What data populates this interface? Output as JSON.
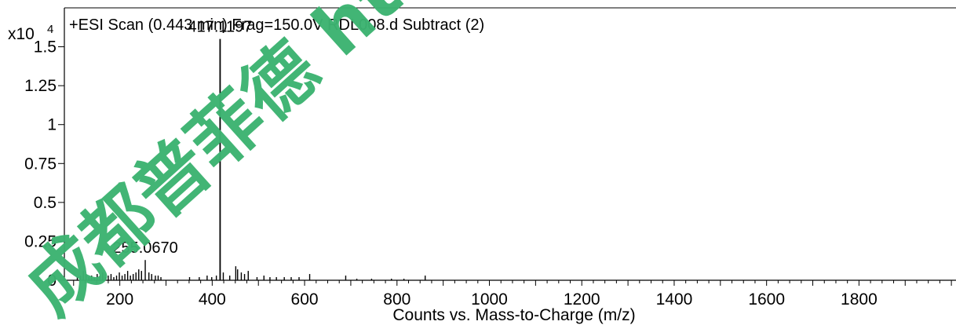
{
  "chart_data": {
    "type": "bar",
    "title": "+ESI Scan (0.443 min) Frag=150.0V RDL008.d  Subtract (2)",
    "xlabel": "Counts vs. Mass-to-Charge (m/z)",
    "ylabel": "",
    "y_multiplier_label": "x10",
    "y_multiplier_exponent": "4",
    "xlim": [
      80,
      2010
    ],
    "ylim": [
      0,
      1.75
    ],
    "x_ticks": [
      200,
      400,
      600,
      800,
      1000,
      1200,
      1400,
      1600,
      1800
    ],
    "y_ticks": [
      0,
      0.25,
      0.5,
      0.75,
      1,
      1.25,
      1.5
    ],
    "y_tick_labels": [
      "0",
      "0.25",
      "0.5",
      "0.75",
      "1",
      "1.25",
      "1.5"
    ],
    "grid": false,
    "annotations": [
      {
        "text": "417.1197",
        "x": 417.1197,
        "y": 1.55
      },
      {
        "text": "255.0670",
        "x": 255.067,
        "y": 0.13
      }
    ],
    "peaks": [
      {
        "x": 108,
        "y": 0.02
      },
      {
        "x": 115,
        "y": 0.03
      },
      {
        "x": 121,
        "y": 0.06
      },
      {
        "x": 127,
        "y": 0.04
      },
      {
        "x": 133,
        "y": 0.02
      },
      {
        "x": 139,
        "y": 0.03
      },
      {
        "x": 145,
        "y": 0.02
      },
      {
        "x": 151,
        "y": 0.04
      },
      {
        "x": 157,
        "y": 0.03
      },
      {
        "x": 163,
        "y": 0.05
      },
      {
        "x": 169,
        "y": 0.02
      },
      {
        "x": 175,
        "y": 0.03
      },
      {
        "x": 181,
        "y": 0.04
      },
      {
        "x": 187,
        "y": 0.02
      },
      {
        "x": 193,
        "y": 0.03
      },
      {
        "x": 199,
        "y": 0.05
      },
      {
        "x": 205,
        "y": 0.03
      },
      {
        "x": 211,
        "y": 0.04
      },
      {
        "x": 217,
        "y": 0.06
      },
      {
        "x": 223,
        "y": 0.03
      },
      {
        "x": 229,
        "y": 0.04
      },
      {
        "x": 235,
        "y": 0.05
      },
      {
        "x": 241,
        "y": 0.07
      },
      {
        "x": 247,
        "y": 0.06
      },
      {
        "x": 255.067,
        "y": 0.13
      },
      {
        "x": 263,
        "y": 0.05
      },
      {
        "x": 269,
        "y": 0.04
      },
      {
        "x": 277,
        "y": 0.03
      },
      {
        "x": 283,
        "y": 0.03
      },
      {
        "x": 289,
        "y": 0.02
      },
      {
        "x": 351,
        "y": 0.02
      },
      {
        "x": 372,
        "y": 0.02
      },
      {
        "x": 389,
        "y": 0.03
      },
      {
        "x": 399,
        "y": 0.02
      },
      {
        "x": 409,
        "y": 0.03
      },
      {
        "x": 417.1197,
        "y": 1.55
      },
      {
        "x": 424,
        "y": 0.05
      },
      {
        "x": 438,
        "y": 0.03
      },
      {
        "x": 451,
        "y": 0.09
      },
      {
        "x": 455,
        "y": 0.07
      },
      {
        "x": 463,
        "y": 0.05
      },
      {
        "x": 470,
        "y": 0.04
      },
      {
        "x": 478,
        "y": 0.06
      },
      {
        "x": 497,
        "y": 0.02
      },
      {
        "x": 512,
        "y": 0.03
      },
      {
        "x": 525,
        "y": 0.02
      },
      {
        "x": 539,
        "y": 0.02
      },
      {
        "x": 556,
        "y": 0.02
      },
      {
        "x": 571,
        "y": 0.02
      },
      {
        "x": 588,
        "y": 0.02
      },
      {
        "x": 611,
        "y": 0.04
      },
      {
        "x": 689,
        "y": 0.03
      },
      {
        "x": 713,
        "y": 0.01
      },
      {
        "x": 745,
        "y": 0.01
      },
      {
        "x": 788,
        "y": 0.01
      },
      {
        "x": 815,
        "y": 0.01
      },
      {
        "x": 861,
        "y": 0.03
      }
    ]
  },
  "watermark": {
    "text": "成都普菲德 http://www.s",
    "color": "#3cb371"
  }
}
